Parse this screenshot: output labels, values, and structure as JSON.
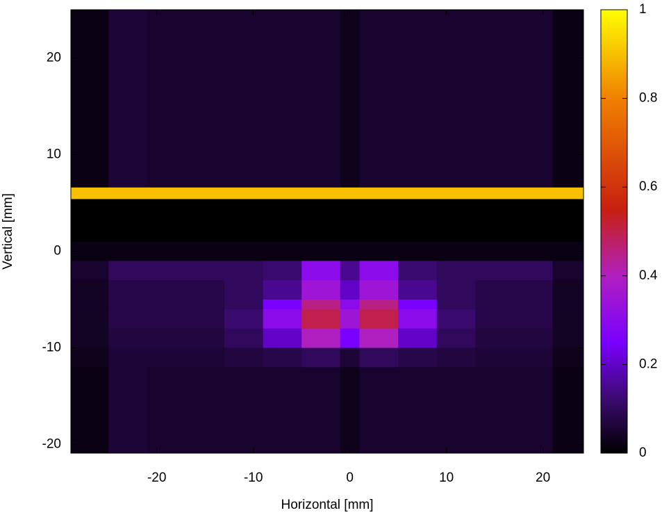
{
  "chart_data": {
    "type": "heatmap",
    "xlabel": "Horizontal [mm]",
    "ylabel": "Vertical [mm]",
    "xlim": [
      -28.9,
      24.2
    ],
    "ylim": [
      -20.9,
      25
    ],
    "xticks": [
      -20,
      -10,
      0,
      10,
      20
    ],
    "yticks": [
      -20,
      -10,
      0,
      10,
      20
    ],
    "clim": [
      0,
      1
    ],
    "cticks": [
      0,
      0.2,
      0.4,
      0.6,
      0.8,
      1
    ],
    "colormap": [
      [
        0,
        "#000000"
      ],
      [
        0.12,
        "#3a0a6e"
      ],
      [
        0.25,
        "#7a00ff"
      ],
      [
        0.4,
        "#b020c0"
      ],
      [
        0.55,
        "#c82010"
      ],
      [
        0.8,
        "#f08000"
      ],
      [
        1,
        "#ffff00"
      ]
    ],
    "xbins": [
      -28.9,
      -25,
      -21,
      -17,
      -13,
      -9,
      -5,
      -1,
      1,
      5,
      9,
      13,
      17,
      21,
      24.2
    ],
    "ybins": [
      25,
      21,
      17,
      13,
      9,
      6.6,
      5.4,
      1,
      -1,
      -3,
      -5,
      -6,
      -8,
      -10,
      -12,
      -16,
      -20.9
    ],
    "z": [
      [
        0.02,
        0.06,
        0.05,
        0.05,
        0.05,
        0.05,
        0.05,
        0.03,
        0.05,
        0.05,
        0.05,
        0.05,
        0.05,
        0.02
      ],
      [
        0.02,
        0.06,
        0.05,
        0.05,
        0.05,
        0.05,
        0.05,
        0.03,
        0.05,
        0.05,
        0.05,
        0.05,
        0.05,
        0.02
      ],
      [
        0.02,
        0.06,
        0.05,
        0.05,
        0.05,
        0.05,
        0.05,
        0.03,
        0.05,
        0.05,
        0.05,
        0.05,
        0.05,
        0.02
      ],
      [
        0.02,
        0.06,
        0.05,
        0.05,
        0.05,
        0.05,
        0.05,
        0.03,
        0.05,
        0.05,
        0.05,
        0.05,
        0.05,
        0.02
      ],
      [
        0.02,
        0.06,
        0.05,
        0.05,
        0.05,
        0.05,
        0.05,
        0.03,
        0.05,
        0.05,
        0.05,
        0.05,
        0.05,
        0.02
      ],
      [
        0.9,
        0.9,
        0.9,
        0.9,
        0.9,
        0.9,
        0.9,
        0.9,
        0.9,
        0.9,
        0.9,
        0.9,
        0.9,
        0.9
      ],
      [
        0,
        0,
        0,
        0,
        0,
        0,
        0,
        0,
        0,
        0,
        0,
        0,
        0,
        0
      ],
      [
        0.02,
        0.02,
        0.02,
        0.02,
        0.02,
        0.02,
        0.02,
        0.02,
        0.02,
        0.02,
        0.02,
        0.02,
        0.02,
        0.02
      ],
      [
        0.05,
        0.1,
        0.1,
        0.1,
        0.1,
        0.12,
        0.3,
        0.15,
        0.3,
        0.12,
        0.1,
        0.1,
        0.1,
        0.05
      ],
      [
        0.04,
        0.08,
        0.08,
        0.08,
        0.1,
        0.15,
        0.35,
        0.2,
        0.35,
        0.15,
        0.1,
        0.08,
        0.08,
        0.04
      ],
      [
        0.04,
        0.08,
        0.08,
        0.08,
        0.1,
        0.25,
        0.45,
        0.3,
        0.45,
        0.25,
        0.1,
        0.08,
        0.08,
        0.04
      ],
      [
        0.04,
        0.08,
        0.08,
        0.08,
        0.12,
        0.3,
        0.5,
        0.35,
        0.5,
        0.3,
        0.12,
        0.08,
        0.08,
        0.04
      ],
      [
        0.04,
        0.07,
        0.07,
        0.07,
        0.1,
        0.2,
        0.4,
        0.25,
        0.4,
        0.2,
        0.1,
        0.07,
        0.07,
        0.04
      ],
      [
        0.03,
        0.06,
        0.06,
        0.06,
        0.07,
        0.08,
        0.1,
        0.06,
        0.1,
        0.08,
        0.07,
        0.06,
        0.06,
        0.03
      ],
      [
        0.02,
        0.06,
        0.05,
        0.05,
        0.05,
        0.05,
        0.05,
        0.03,
        0.05,
        0.05,
        0.05,
        0.05,
        0.05,
        0.02
      ],
      [
        0.02,
        0.06,
        0.05,
        0.05,
        0.05,
        0.05,
        0.05,
        0.03,
        0.05,
        0.05,
        0.05,
        0.05,
        0.05,
        0.02
      ]
    ]
  }
}
